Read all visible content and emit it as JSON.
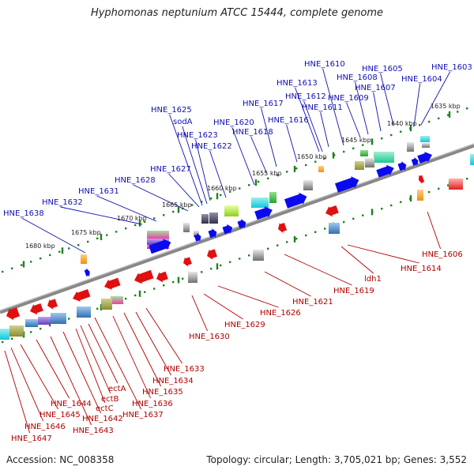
{
  "title": "Hyphomonas neptunium ATCC 15444, complete genome",
  "footer": {
    "accession": "Accession: NC_008358",
    "topology": "Topology: circular; Length: 3,705,021 bp; Genes: 3,552"
  },
  "colors": {
    "forward": "#0a0af0",
    "reverse": "#e01010",
    "forward_label": "#1010b0",
    "reverse_label": "#b00000",
    "ruler": "#208020",
    "backbone": "#888888"
  },
  "kbp_ticks": [
    "1635 kbp",
    "1640 kbp",
    "1645 kbp",
    "1650 kbp",
    "1655 kbp",
    "1660 kbp",
    "1665 kbp",
    "1670 kbp",
    "1675 kbp",
    "1680 kbp"
  ],
  "top_labels": [
    "HNE_1603",
    "HNE_1604",
    "HNE_1605",
    "HNE_1607",
    "HNE_1608",
    "HNE_1609",
    "HNE_1610",
    "HNE_1611",
    "HNE_1612",
    "HNE_1613",
    "HNE_1616",
    "HNE_1617",
    "HNE_1618",
    "HNE_1620",
    "HNE_1622",
    "HNE_1623",
    "sodA",
    "HNE_1625",
    "HNE_1627",
    "HNE_1628",
    "HNE_1631",
    "HNE_1632",
    "HNE_1638"
  ],
  "bottom_labels": [
    "HNE_1606",
    "HNE_1614",
    "ldh1",
    "HNE_1619",
    "HNE_1621",
    "HNE_1626",
    "HNE_1629",
    "HNE_1630",
    "HNE_1633",
    "HNE_1634",
    "HNE_1635",
    "HNE_1636",
    "HNE_1637",
    "ectA",
    "ectB",
    "ectC",
    "HNE_1642",
    "HNE_1643",
    "HNE_1644",
    "HNE_1645",
    "HNE_1646",
    "HNE_1647"
  ]
}
